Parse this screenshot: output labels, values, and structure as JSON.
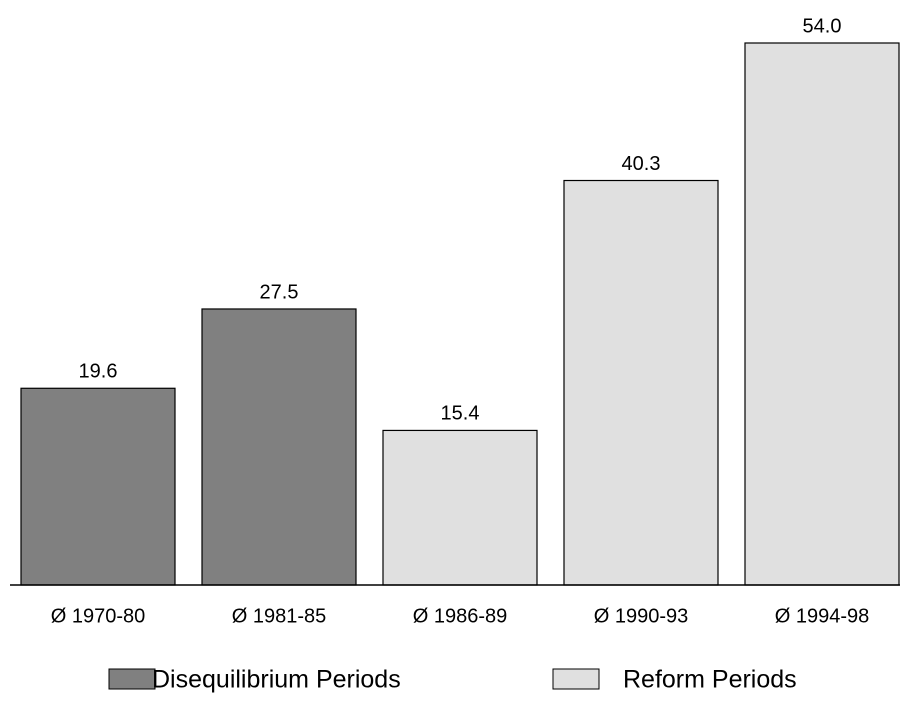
{
  "chart_data": {
    "type": "bar",
    "categories": [
      "Ø 1970-80",
      "Ø 1981-85",
      "Ø 1986-89",
      "Ø 1990-93",
      "Ø 1994-98"
    ],
    "series": [
      {
        "name": "Disequilibrium Periods",
        "color": "#808080",
        "values": [
          19.6,
          27.5,
          null,
          null,
          null
        ]
      },
      {
        "name": "Reform Periods",
        "color": "#e0e0e0",
        "values": [
          null,
          null,
          15.4,
          40.3,
          54.0
        ],
        "value_labels": [
          null,
          null,
          "15.4",
          "40.3",
          "54.0"
        ]
      }
    ]
  }
}
